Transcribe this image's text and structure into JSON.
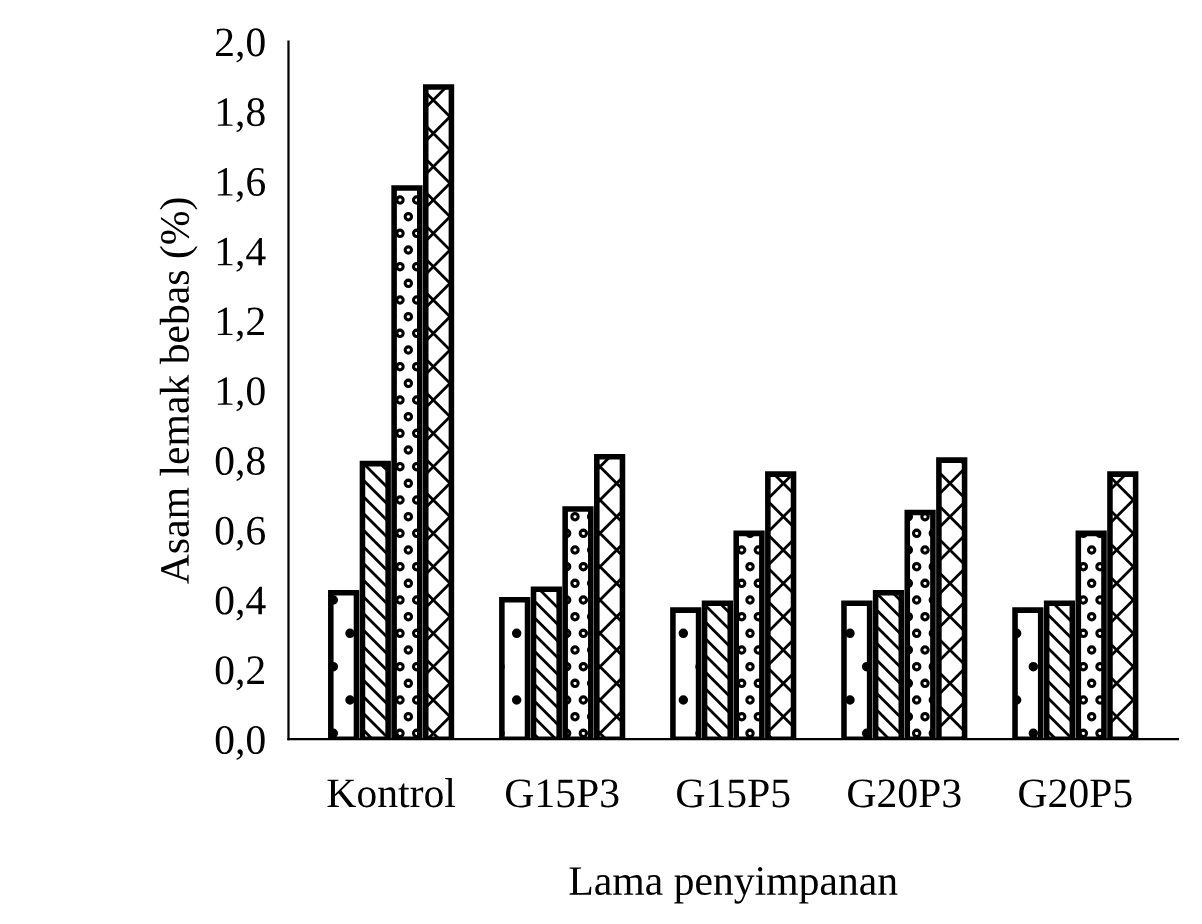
{
  "chart_data": {
    "type": "bar",
    "xlabel": "Lama penyimpanan",
    "ylabel": "Asam lemak bebas (%)",
    "categories": [
      "Kontrol",
      "G15P3",
      "G15P5",
      "G20P3",
      "G20P5"
    ],
    "series": [
      {
        "color": "#000000",
        "values": [
          0.42,
          0.4,
          0.37,
          0.39,
          0.37
        ]
      },
      {
        "color": "#000000",
        "values": [
          0.79,
          0.43,
          0.39,
          0.42,
          0.39
        ]
      },
      {
        "color": "#000000",
        "values": [
          1.58,
          0.66,
          0.59,
          0.65,
          0.59
        ]
      },
      {
        "color": "#000000",
        "values": [
          1.87,
          0.81,
          0.76,
          0.8,
          0.76
        ]
      }
    ],
    "ylim": [
      0,
      2.0
    ],
    "yticks": [
      {
        "value": 0,
        "label": "0,0"
      },
      {
        "value": 0.2,
        "label": "0,2"
      },
      {
        "value": 0.4,
        "label": "0,4"
      },
      {
        "value": 0.6,
        "label": "0,6"
      },
      {
        "value": 0.8,
        "label": "0,8"
      },
      {
        "value": 1.0,
        "label": "1,0"
      },
      {
        "value": 1.2,
        "label": "1,2"
      },
      {
        "value": 1.4,
        "label": "1,4"
      },
      {
        "value": 1.6,
        "label": "1,6"
      },
      {
        "value": 1.8,
        "label": "1,8"
      },
      {
        "value": 2.0,
        "label": "2,0"
      }
    ],
    "grid": false,
    "legend": false
  }
}
